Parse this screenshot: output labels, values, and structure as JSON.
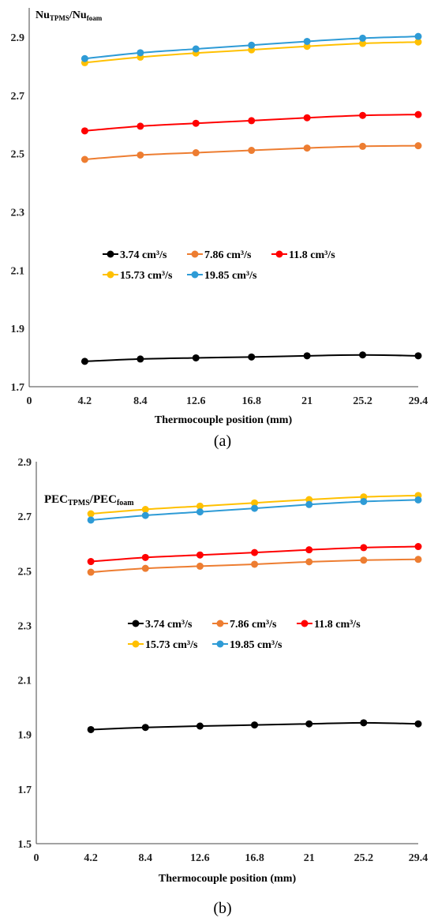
{
  "chart_data": [
    {
      "type": "line",
      "panel": "(a)",
      "caption_letter": "a",
      "ylabel_main": "Nu",
      "ylabel_sub1": "TPMS",
      "ylabel_mid": "/Nu",
      "ylabel_sub2": "foam",
      "xlabel": "Thermocouple position (mm)",
      "xlim": [
        0,
        29.4
      ],
      "ylim": [
        1.7,
        3.0
      ],
      "x_ticks": [
        0,
        4.2,
        8.4,
        12.6,
        16.8,
        21,
        25.2,
        29.4
      ],
      "x_tick_labels": [
        "0",
        "4.2",
        "8.4",
        "12.6",
        "16.8",
        "21",
        "25.2",
        "29.4"
      ],
      "y_ticks": [
        1.7,
        1.9,
        2.1,
        2.3,
        2.5,
        2.7,
        2.9
      ],
      "y_tick_labels": [
        "1.7",
        "1.9",
        "2.1",
        "2.3",
        "2.5",
        "2.7",
        "2.9"
      ],
      "grid": false,
      "legend_position": "center",
      "x": [
        4.2,
        8.4,
        12.6,
        16.8,
        21,
        25.2,
        29.4
      ],
      "series": [
        {
          "name": "3.74 cm³/s",
          "color": "#000000",
          "values": [
            1.787,
            1.795,
            1.799,
            1.802,
            1.806,
            1.809,
            1.806
          ]
        },
        {
          "name": "7.86 cm³/s",
          "color": "#ED7D31",
          "values": [
            2.48,
            2.495,
            2.503,
            2.511,
            2.519,
            2.525,
            2.527
          ]
        },
        {
          "name": "11.8 cm³/s",
          "color": "#FF0000",
          "values": [
            2.578,
            2.594,
            2.604,
            2.613,
            2.623,
            2.631,
            2.634
          ]
        },
        {
          "name": "15.73 cm³/s",
          "color": "#FFC000",
          "values": [
            2.812,
            2.831,
            2.845,
            2.856,
            2.868,
            2.878,
            2.883
          ]
        },
        {
          "name": "19.85 cm³/s",
          "color": "#2E9BD6",
          "values": [
            2.826,
            2.846,
            2.859,
            2.872,
            2.885,
            2.896,
            2.902
          ]
        }
      ]
    },
    {
      "type": "line",
      "panel": "(b)",
      "caption_letter": "b",
      "ylabel_main": "PEC",
      "ylabel_sub1": "TPMS",
      "ylabel_mid": "/PEC",
      "ylabel_sub2": "foam",
      "xlabel": "Thermocouple position (mm)",
      "xlim": [
        0,
        29.4
      ],
      "ylim": [
        1.5,
        2.9
      ],
      "x_ticks": [
        0,
        4.2,
        8.4,
        12.6,
        16.8,
        21,
        25.2,
        29.4
      ],
      "x_tick_labels": [
        "0",
        "4.2",
        "8.4",
        "12.6",
        "16.8",
        "21",
        "25.2",
        "29.4"
      ],
      "y_ticks": [
        1.5,
        1.7,
        1.9,
        2.1,
        2.3,
        2.5,
        2.7,
        2.9
      ],
      "y_tick_labels": [
        "1.5",
        "1.7",
        "1.9",
        "2.1",
        "2.3",
        "2.5",
        "2.7",
        "2.9"
      ],
      "grid": false,
      "legend_position": "center",
      "x": [
        4.2,
        8.4,
        12.6,
        16.8,
        21,
        25.2,
        29.4
      ],
      "series": [
        {
          "name": "3.74 cm³/s",
          "color": "#000000",
          "values": [
            1.918,
            1.926,
            1.931,
            1.935,
            1.939,
            1.943,
            1.939
          ]
        },
        {
          "name": "7.86 cm³/s",
          "color": "#ED7D31",
          "values": [
            2.495,
            2.509,
            2.517,
            2.524,
            2.533,
            2.539,
            2.542
          ]
        },
        {
          "name": "11.8 cm³/s",
          "color": "#FF0000",
          "values": [
            2.534,
            2.549,
            2.558,
            2.567,
            2.577,
            2.585,
            2.589
          ]
        },
        {
          "name": "15.73 cm³/s",
          "color": "#FFC000",
          "values": [
            2.709,
            2.725,
            2.737,
            2.749,
            2.761,
            2.771,
            2.776
          ]
        },
        {
          "name": "19.85 cm³/s",
          "color": "#2E9BD6",
          "values": [
            2.686,
            2.703,
            2.716,
            2.729,
            2.743,
            2.754,
            2.76
          ]
        }
      ]
    }
  ]
}
